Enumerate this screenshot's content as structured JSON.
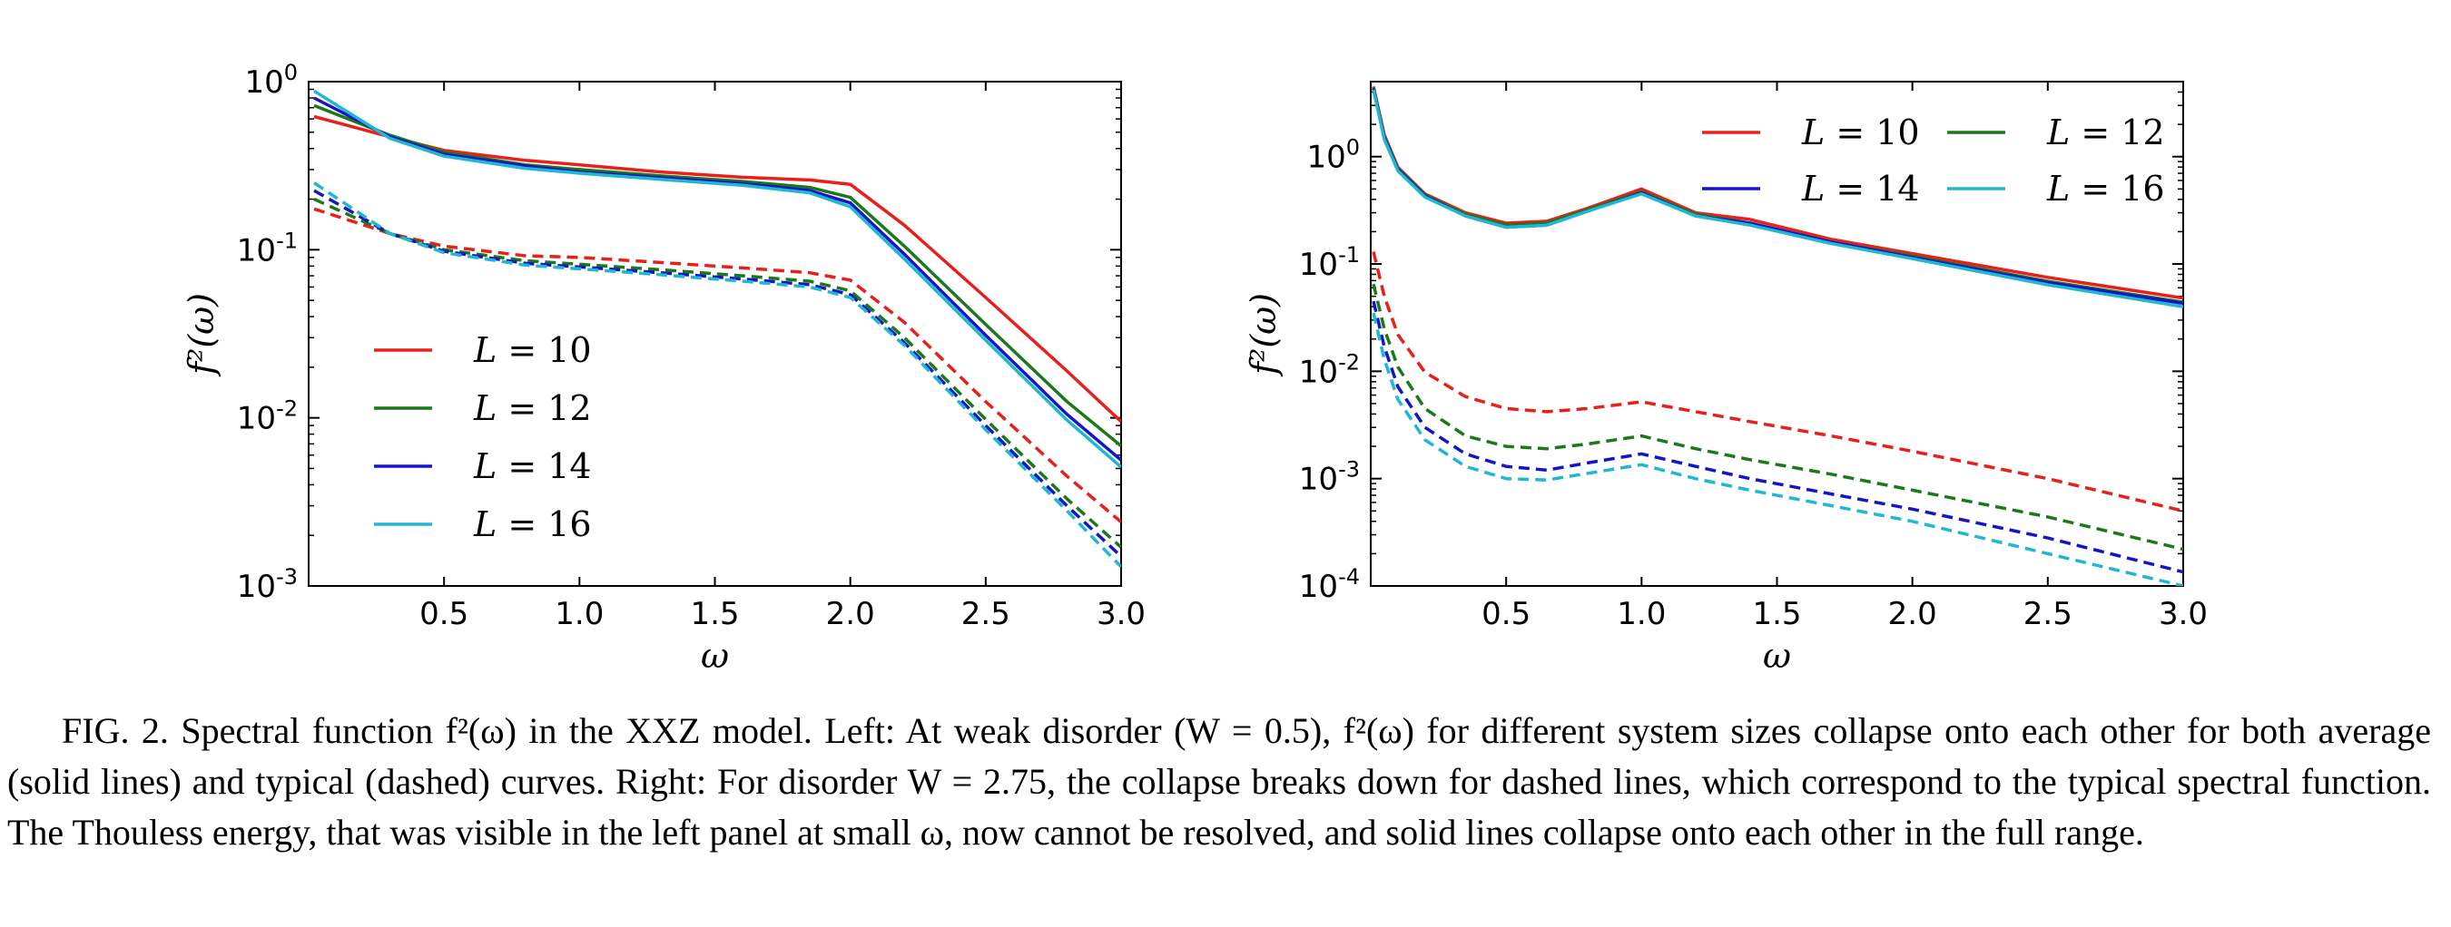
{
  "figure": {
    "caption": {
      "label": "FIG. 2.",
      "text": "Spectral function f²(ω) in the XXZ model. Left: At weak disorder (W = 0.5), f²(ω) for different system sizes collapse onto each other for both average (solid lines) and typical (dashed) curves. Right: For disorder W = 2.75, the collapse breaks down for dashed lines, which correspond to the typical spectral function. The Thouless energy, that was visible in the left panel at small ω, now cannot be resolved, and solid lines collapse onto each other in the full range."
    }
  },
  "chart_data": [
    {
      "type": "line",
      "panel": "left",
      "xlabel": "ω",
      "ylabel": "f²(ω)",
      "xlim": [
        0.0,
        3.0
      ],
      "ylim": [
        0.001,
        1.0
      ],
      "yscale": "log",
      "xticks": [
        "0.5",
        "1.0",
        "1.5",
        "2.0",
        "2.5",
        "3.0"
      ],
      "yticks": [
        {
          "base": "10",
          "exp": "0"
        },
        {
          "base": "10",
          "exp": "-1"
        },
        {
          "base": "10",
          "exp": "-2"
        },
        {
          "base": "10",
          "exp": "-3"
        }
      ],
      "grid": false,
      "legend": {
        "placement": "lower-left",
        "columns": 1
      },
      "x": [
        0.02,
        0.3,
        0.5,
        0.8,
        1.0,
        1.3,
        1.6,
        1.85,
        2.0,
        2.2,
        2.5,
        2.8,
        3.0
      ],
      "series": [
        {
          "name": "L = 10",
          "color": "#e8201c",
          "style": "solid",
          "values": [
            0.62,
            0.47,
            0.39,
            0.34,
            0.32,
            0.29,
            0.27,
            0.26,
            0.245,
            0.14,
            0.052,
            0.019,
            0.0095
          ]
        },
        {
          "name": "L = 12",
          "color": "#1a7a1a",
          "style": "solid",
          "values": [
            0.72,
            0.48,
            0.38,
            0.32,
            0.3,
            0.275,
            0.255,
            0.235,
            0.205,
            0.105,
            0.036,
            0.0125,
            0.0068
          ]
        },
        {
          "name": "L = 14",
          "color": "#1515c8",
          "style": "solid",
          "values": [
            0.8,
            0.47,
            0.37,
            0.315,
            0.29,
            0.268,
            0.248,
            0.225,
            0.19,
            0.094,
            0.031,
            0.0105,
            0.0056
          ]
        },
        {
          "name": "L = 16",
          "color": "#20b8d0",
          "style": "solid",
          "values": [
            0.88,
            0.46,
            0.36,
            0.305,
            0.285,
            0.262,
            0.242,
            0.218,
            0.18,
            0.088,
            0.029,
            0.0097,
            0.0051
          ]
        },
        {
          "name": "L = 10",
          "color": "#e8201c",
          "style": "dashed",
          "values": [
            0.175,
            0.125,
            0.105,
            0.092,
            0.09,
            0.084,
            0.078,
            0.073,
            0.066,
            0.037,
            0.0125,
            0.0045,
            0.0024
          ]
        },
        {
          "name": "L = 12",
          "color": "#1a7a1a",
          "style": "dashed",
          "values": [
            0.2,
            0.125,
            0.1,
            0.086,
            0.082,
            0.076,
            0.07,
            0.065,
            0.057,
            0.03,
            0.0098,
            0.0033,
            0.0017
          ]
        },
        {
          "name": "L = 14",
          "color": "#1515c8",
          "style": "dashed",
          "values": [
            0.225,
            0.125,
            0.098,
            0.083,
            0.079,
            0.073,
            0.067,
            0.062,
            0.054,
            0.028,
            0.009,
            0.003,
            0.0015
          ]
        },
        {
          "name": "L = 16",
          "color": "#20b8d0",
          "style": "dashed",
          "values": [
            0.25,
            0.125,
            0.096,
            0.081,
            0.077,
            0.071,
            0.065,
            0.06,
            0.052,
            0.027,
            0.0085,
            0.0028,
            0.0013
          ]
        }
      ]
    },
    {
      "type": "line",
      "panel": "right",
      "xlabel": "ω",
      "ylabel": "f²(ω)",
      "xlim": [
        0.0,
        3.0
      ],
      "ylim": [
        0.0001,
        5.0
      ],
      "yscale": "log",
      "xticks": [
        "0.5",
        "1.0",
        "1.5",
        "2.0",
        "2.5",
        "3.0"
      ],
      "yticks": [
        {
          "base": "10",
          "exp": "0"
        },
        {
          "base": "10",
          "exp": "-1"
        },
        {
          "base": "10",
          "exp": "-2"
        },
        {
          "base": "10",
          "exp": "-3"
        },
        {
          "base": "10",
          "exp": "-4"
        }
      ],
      "grid": false,
      "legend": {
        "placement": "top-right",
        "columns": 2
      },
      "x": [
        0.01,
        0.05,
        0.1,
        0.2,
        0.35,
        0.5,
        0.65,
        0.8,
        1.0,
        1.2,
        1.4,
        1.7,
        2.0,
        2.5,
        3.0
      ],
      "series": [
        {
          "name": "L = 10",
          "color": "#e8201c",
          "style": "solid",
          "values": [
            4.5,
            1.6,
            0.8,
            0.45,
            0.3,
            0.24,
            0.25,
            0.33,
            0.5,
            0.3,
            0.26,
            0.17,
            0.125,
            0.075,
            0.048
          ]
        },
        {
          "name": "L = 12",
          "color": "#1a7a1a",
          "style": "solid",
          "values": [
            4.4,
            1.55,
            0.78,
            0.44,
            0.29,
            0.23,
            0.24,
            0.32,
            0.47,
            0.29,
            0.24,
            0.16,
            0.118,
            0.069,
            0.044
          ]
        },
        {
          "name": "L = 14",
          "color": "#1515c8",
          "style": "solid",
          "values": [
            4.3,
            1.5,
            0.76,
            0.43,
            0.28,
            0.22,
            0.23,
            0.31,
            0.46,
            0.28,
            0.24,
            0.16,
            0.115,
            0.067,
            0.043
          ]
        },
        {
          "name": "L = 16",
          "color": "#20b8d0",
          "style": "solid",
          "values": [
            4.2,
            1.45,
            0.74,
            0.42,
            0.28,
            0.22,
            0.23,
            0.31,
            0.45,
            0.28,
            0.23,
            0.155,
            0.112,
            0.064,
            0.04
          ]
        },
        {
          "name": "L = 10",
          "color": "#e8201c",
          "style": "dashed",
          "values": [
            0.13,
            0.05,
            0.022,
            0.0098,
            0.0058,
            0.0045,
            0.0042,
            0.0045,
            0.0052,
            0.0042,
            0.0034,
            0.0025,
            0.0018,
            0.001,
            0.0005
          ]
        },
        {
          "name": "L = 12",
          "color": "#1a7a1a",
          "style": "dashed",
          "values": [
            0.065,
            0.025,
            0.011,
            0.0045,
            0.0025,
            0.002,
            0.0019,
            0.0021,
            0.0025,
            0.0019,
            0.0015,
            0.0011,
            0.00078,
            0.00044,
            0.00022
          ]
        },
        {
          "name": "L = 14",
          "color": "#1515c8",
          "style": "dashed",
          "values": [
            0.045,
            0.017,
            0.0072,
            0.003,
            0.0017,
            0.0013,
            0.0012,
            0.0014,
            0.0017,
            0.0013,
            0.001,
            0.00072,
            0.00052,
            0.00028,
            0.000135
          ]
        },
        {
          "name": "L = 16",
          "color": "#20b8d0",
          "style": "dashed",
          "values": [
            0.035,
            0.013,
            0.0055,
            0.0023,
            0.0013,
            0.001,
            0.00097,
            0.00112,
            0.00135,
            0.001,
            0.00078,
            0.00056,
            0.0004,
            0.0002,
            0.0001
          ]
        }
      ]
    }
  ]
}
